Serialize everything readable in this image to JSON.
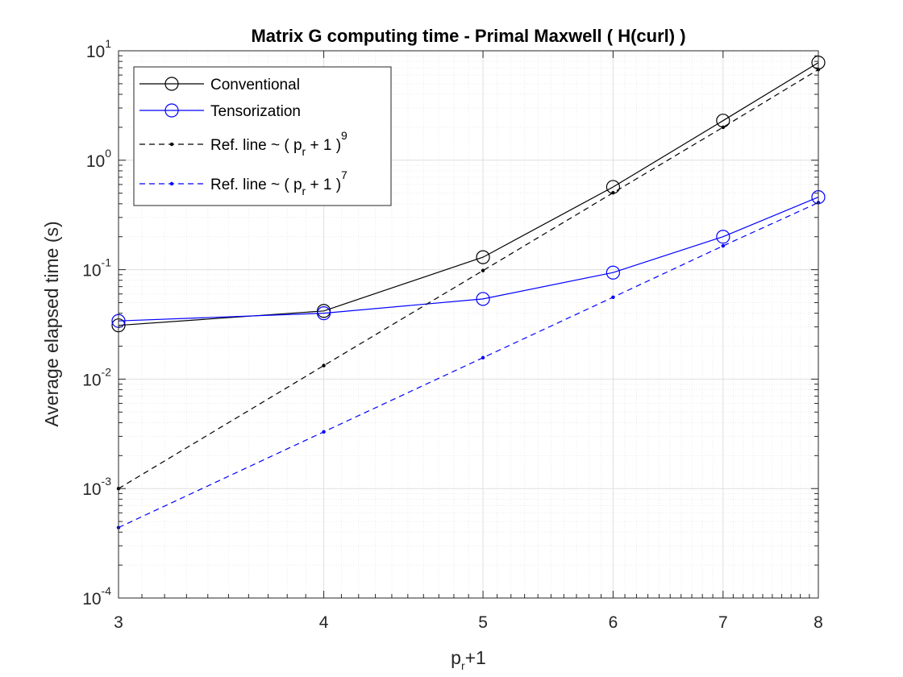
{
  "chart_data": {
    "type": "line",
    "title": "Matrix G computing time - Primal Maxwell ( H(curl) )",
    "xlabel": {
      "base": "p",
      "sub": "r",
      "rest": "+1"
    },
    "ylabel": "Average elapsed time (s)",
    "xscale": "log",
    "yscale": "log",
    "xlim": [
      3,
      8
    ],
    "ylim": [
      0.0001,
      10
    ],
    "xticks": [
      3,
      4,
      5,
      6,
      7,
      8
    ],
    "xtick_labels": [
      "3",
      "4",
      "5",
      "6",
      "7",
      "8"
    ],
    "yticks": [
      {
        "value": 0.0001,
        "base": "10",
        "exp": "-4"
      },
      {
        "value": 0.001,
        "base": "10",
        "exp": "-3"
      },
      {
        "value": 0.01,
        "base": "10",
        "exp": "-2"
      },
      {
        "value": 0.1,
        "base": "10",
        "exp": "-1"
      },
      {
        "value": 1,
        "base": "10",
        "exp": "0"
      },
      {
        "value": 10,
        "base": "10",
        "exp": "1"
      }
    ],
    "grid": true,
    "minor_grid": true,
    "legend_position": "top-left",
    "x": [
      3,
      4,
      5,
      6,
      7,
      8
    ],
    "series": [
      {
        "name": "Conventional",
        "color": "#000000",
        "line": "solid",
        "marker": "circle",
        "values": [
          0.031,
          0.042,
          0.13,
          0.57,
          2.3,
          7.8
        ]
      },
      {
        "name": "Tensorization",
        "color": "#0000ff",
        "line": "solid",
        "marker": "circle",
        "values": [
          0.034,
          0.04,
          0.054,
          0.094,
          0.2,
          0.46
        ]
      },
      {
        "name": "Ref. line ~ ( p_r + 1 )^9",
        "legend": {
          "pre": "Ref. line ~ ( p",
          "sub": "r",
          "mid": " + 1 )",
          "sup": "9"
        },
        "color": "#000000",
        "line": "dashed",
        "marker": "dot",
        "values": [
          0.001,
          0.0133,
          0.0982,
          0.504,
          2.0,
          6.74
        ]
      },
      {
        "name": "Ref. line ~ ( p_r + 1 )^7",
        "legend": {
          "pre": "Ref. line ~ ( p",
          "sub": "r",
          "mid": " + 1 )",
          "sup": "7"
        },
        "color": "#0000ff",
        "line": "dashed",
        "marker": "dot",
        "values": [
          0.00044,
          0.0033,
          0.0157,
          0.056,
          0.165,
          0.41
        ]
      }
    ]
  }
}
